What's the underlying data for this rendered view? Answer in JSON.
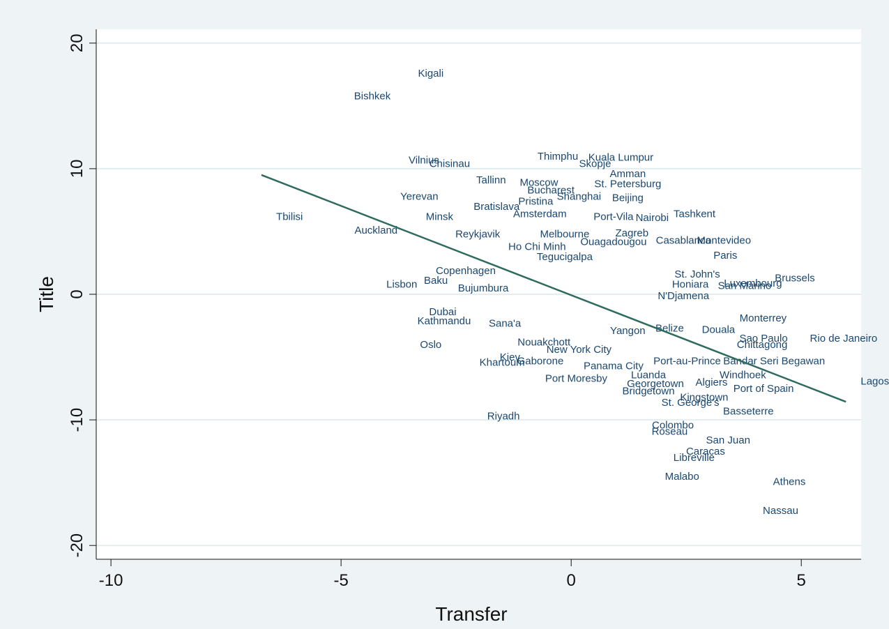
{
  "chart_data": {
    "type": "scatter",
    "x_label": "Transfer",
    "y_label": "Title",
    "xlim": [
      -10.32,
      6.3
    ],
    "ylim": [
      -21.1,
      21.1
    ],
    "xticks": [
      -10,
      -5,
      0,
      5
    ],
    "yticks": [
      -20,
      -10,
      0,
      10,
      20
    ],
    "grid": true,
    "label_color": "#1a476f",
    "fit_color": "#2e6b5e",
    "labels": [
      "Kigali",
      "Bishkek",
      "Vilnius",
      "Chisinau",
      "Thimphu",
      "Kuala Lumpur",
      "Skopje",
      "Amman",
      "Tallinn",
      "Moscow",
      "St. Petersburg",
      "Yerevan",
      "Bucharest",
      "Shanghai",
      "Beijing",
      "Pristina",
      "Bratislava",
      "Tbilisi",
      "Minsk",
      "Auckland",
      "Amsterdam",
      "Port-Vila",
      "Nairobi",
      "Tashkent",
      "Reykjavik",
      "Zagreb",
      "Melbourne",
      "Casablanca",
      "Montevideo",
      "Ouagadougou",
      "Ho Chi Minh",
      "Paris",
      "Tegucigalpa",
      "Copenhagen",
      "Baku",
      "Lisbon",
      "Bujumbura",
      "St. John's",
      "Honiara",
      "Luxembourg",
      "San Marino",
      "Brussels",
      "N'Djamena",
      "Dubai",
      "Kathmandu",
      "Sana'a",
      "Monterrey",
      "Belize",
      "Douala",
      "Sao Paulo",
      "Rio de Janeiro",
      "Chittagong",
      "Oslo",
      "Nouakchott",
      "Yangon",
      "New York City",
      "Kiev",
      "Khartoum",
      "Gaborone",
      "Bandar Seri Begawan",
      "Panama City",
      "Port-au-Prince",
      "Luanda",
      "Windhoek",
      "Port Moresby",
      "Georgetown",
      "Algiers",
      "Lagos",
      "Port of Spain",
      "Bridgetown",
      "Kingstown",
      "St. George's",
      "Basseterre",
      "Roseau",
      "Riyadh",
      "Colombo",
      "San Juan",
      "Caracas",
      "Libreville",
      "Malabo",
      "Athens",
      "Nassau"
    ],
    "x": [
      -3.05,
      -4.32,
      -3.2,
      -2.64,
      -0.29,
      1.08,
      0.52,
      1.23,
      -1.74,
      -0.7,
      1.23,
      -3.3,
      -0.44,
      0.17,
      1.23,
      -0.77,
      -1.62,
      -6.12,
      -2.86,
      -4.24,
      -0.68,
      0.92,
      1.76,
      2.68,
      -2.03,
      1.32,
      -0.14,
      2.44,
      3.32,
      0.92,
      -0.74,
      3.35,
      -0.14,
      -2.29,
      -2.94,
      -3.68,
      -1.91,
      2.74,
      2.59,
      3.95,
      3.77,
      4.86,
      2.44,
      -2.79,
      -2.76,
      -1.44,
      4.17,
      2.14,
      3.2,
      4.18,
      5.92,
      4.15,
      -3.05,
      -0.59,
      1.23,
      0.17,
      -1.33,
      -1.5,
      -0.67,
      4.41,
      0.92,
      2.52,
      1.68,
      3.73,
      0.11,
      1.83,
      3.05,
      6.6,
      4.18,
      1.68,
      2.89,
      2.59,
      3.85,
      2.14,
      -1.47,
      2.21,
      3.41,
      2.92,
      2.67,
      2.41,
      4.74,
      4.55
    ],
    "values": [
      17.6,
      15.8,
      10.7,
      10.4,
      11.0,
      10.9,
      10.4,
      9.6,
      9.1,
      8.9,
      8.8,
      7.8,
      8.3,
      7.8,
      7.7,
      7.4,
      7.0,
      6.2,
      6.2,
      5.1,
      6.4,
      6.2,
      6.1,
      6.4,
      4.8,
      4.9,
      4.8,
      4.3,
      4.3,
      4.2,
      3.8,
      3.1,
      3.0,
      1.9,
      1.1,
      0.8,
      0.5,
      1.6,
      0.8,
      0.9,
      0.7,
      1.3,
      -0.1,
      -1.4,
      -2.1,
      -2.3,
      -1.9,
      -2.7,
      -2.8,
      -3.5,
      -3.5,
      -4.0,
      -4.0,
      -3.8,
      -2.9,
      -4.4,
      -5.0,
      -5.4,
      -5.3,
      -5.3,
      -5.7,
      -5.3,
      -6.4,
      -6.4,
      -6.7,
      -7.1,
      -7.0,
      -6.9,
      -7.5,
      -7.7,
      -8.2,
      -8.6,
      -9.3,
      -10.9,
      -9.7,
      -10.4,
      -11.6,
      -12.5,
      -13.0,
      -14.5,
      -14.9,
      -17.2
    ],
    "fit": {
      "x": [
        -6.73,
        5.97
      ],
      "values": [
        9.5,
        -8.56
      ]
    }
  }
}
